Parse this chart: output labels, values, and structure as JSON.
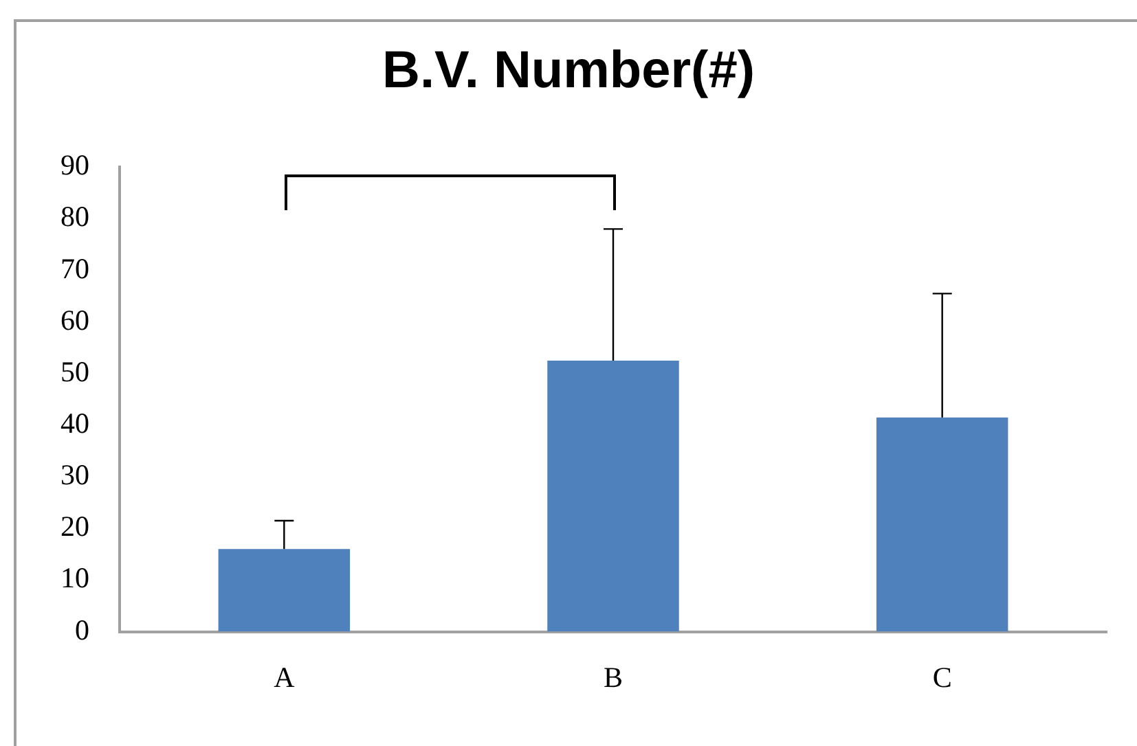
{
  "chart_data": {
    "type": "bar",
    "title": "B.V. Number(#)",
    "categories": [
      "A",
      "B",
      "C"
    ],
    "values": [
      16,
      52.5,
      41.5
    ],
    "errors": [
      5.5,
      25.5,
      24
    ],
    "color": "#4f81bd",
    "ylim": [
      0,
      90
    ],
    "yticks": [
      0,
      10,
      20,
      30,
      40,
      50,
      60,
      70,
      80,
      90
    ],
    "grid": false,
    "legend": false
  }
}
